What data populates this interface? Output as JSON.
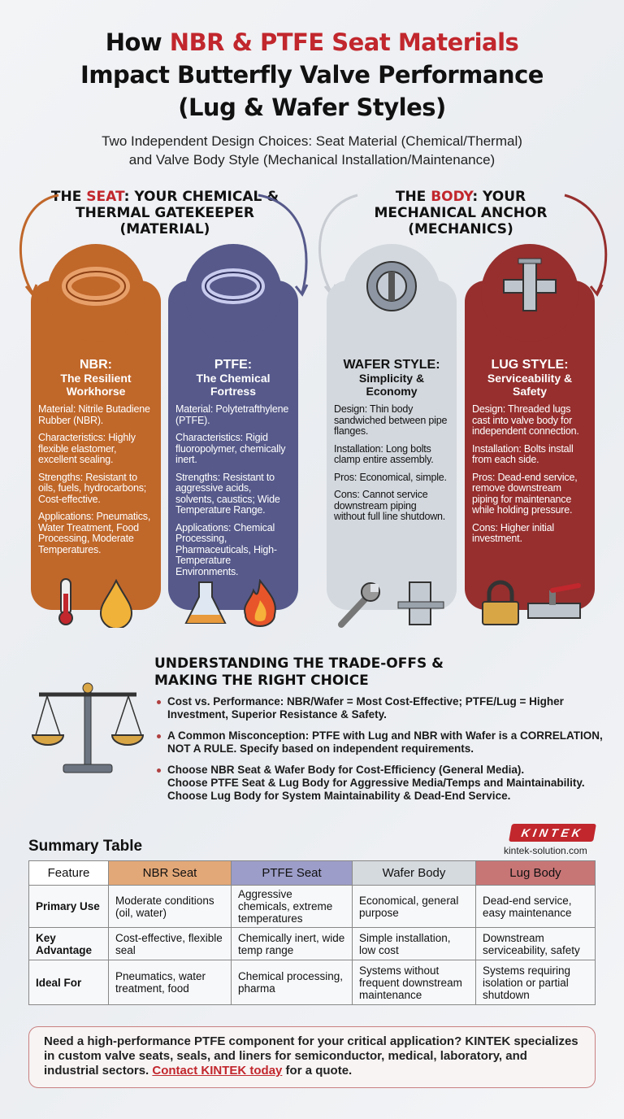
{
  "title": {
    "pre": "How ",
    "highlight": "NBR & PTFE Seat Materials",
    "line2": "Impact Butterfly Valve Performance",
    "line3": "(Lug & Wafer Styles)"
  },
  "subtitle": {
    "line1": "Two Independent Design Choices: Seat Material (Chemical/Thermal)",
    "line2": "and Valve Body Style (Mechanical Installation/Maintenance)"
  },
  "seat_header": {
    "pre": "THE ",
    "highlight": "SEAT",
    "rest": ": YOUR CHEMICAL &",
    "line2": "THERMAL GATEKEEPER",
    "line3": "(MATERIAL)"
  },
  "body_header": {
    "pre": "THE ",
    "highlight": "BODY",
    "rest": ": YOUR",
    "line2": "MECHANICAL ANCHOR",
    "line3": "(MECHANICS)"
  },
  "cards": [
    {
      "title": "NBR:",
      "subtitle": "The Resilient Workhorse",
      "color": "#c0672a",
      "items": [
        "Material: Nitrile Butadiene Rubber (NBR).",
        "Characteristics: Highly flexible elastomer, excellent sealing.",
        "Strengths: Resistant to oils, fuels, hydrocarbons; Cost-effective.",
        "Applications: Pneumatics, Water Treatment, Food Processing, Moderate Temperatures."
      ],
      "icons": [
        "thermometer-icon",
        "oil-drop-icon"
      ]
    },
    {
      "title": "PTFE:",
      "subtitle": "The Chemical Fortress",
      "color": "#56598a",
      "items": [
        "Material: Polytetrafthylene (PTFE).",
        "Characteristics: Rigid fluoropolymer, chemically inert.",
        "Strengths: Resistant to aggressive acids, solvents, caustics; Wide Temperature Range.",
        "Applications: Chemical Processing, Pharmaceuticals, High-Temperature Environments."
      ],
      "icons": [
        "flask-icon",
        "flame-icon"
      ]
    },
    {
      "title": "WAFER STYLE:",
      "subtitle": "Simplicity & Economy",
      "color": "#d3d8de",
      "items": [
        "Design: Thin body sandwiched between pipe flanges.",
        "Installation: Long bolts clamp entire assembly.",
        "Pros: Economical, simple.",
        "Cons: Cannot service downstream piping without full line shutdown."
      ],
      "icons": [
        "wrench-icon",
        "pipe-icon"
      ]
    },
    {
      "title": "LUG STYLE:",
      "subtitle": "Serviceability & Safety",
      "color": "#962f2e",
      "items": [
        "Design: Threaded lugs cast into valve body for independent connection.",
        "Installation: Bolts install from each side.",
        "Pros: Dead-end service, remove downstream piping for maintenance while holding pressure.",
        "Cons: Higher initial investment."
      ],
      "icons": [
        "padlock-icon",
        "valve-icon"
      ]
    }
  ],
  "tradeoffs": {
    "heading1": "UNDERSTANDING THE TRADE-OFFS &",
    "heading2": "MAKING THE RIGHT CHOICE",
    "bullets": [
      "Cost vs. Performance: NBR/Wafer = Most Cost-Effective; PTFE/Lug = Higher Investment, Superior Resistance & Safety.",
      "A Common Misconception: PTFE with Lug and NBR with Wafer is a CORRELATION, NOT A RULE. Specify based on independent requirements."
    ],
    "choose": [
      "Choose NBR Seat & Wafer Body for Cost-Efficiency (General Media).",
      "Choose PTFE Seat & Lug Body for Aggressive Media/Temps and Maintainability.",
      "Choose Lug Body for System Maintainability & Dead-End Service."
    ]
  },
  "summary": {
    "heading": "Summary Table",
    "headers": [
      "Feature",
      "NBR Seat",
      "PTFE Seat",
      "Wafer Body",
      "Lug Body"
    ],
    "header_colors": [
      "#ffffff",
      "#e3a878",
      "#9c9dc8",
      "#d5dadf",
      "#c87576"
    ],
    "rows": [
      [
        "Primary Use",
        "Moderate conditions (oil, water)",
        "Aggressive chemicals, extreme temperatures",
        "Economical, general purpose",
        "Dead-end service, easy maintenance"
      ],
      [
        "Key Advantage",
        "Cost-effective, flexible seal",
        "Chemically inert, wide temp range",
        "Simple installation, low cost",
        "Downstream serviceability, safety"
      ],
      [
        "Ideal For",
        "Pneumatics, water treatment, food",
        "Chemical processing, pharma",
        "Systems without frequent downstream maintenance",
        "Systems requiring isolation or partial shutdown"
      ]
    ]
  },
  "brand": {
    "logo": "KINTEK",
    "site": "kintek-solution.com"
  },
  "cta": {
    "text": "Need a high-performance PTFE component for your critical application? KINTEK specializes in custom valve seats, seals, and liners for semiconductor, medical, laboratory, and industrial sectors. ",
    "link": "Contact KINTEK today",
    "tail": " for a quote."
  }
}
